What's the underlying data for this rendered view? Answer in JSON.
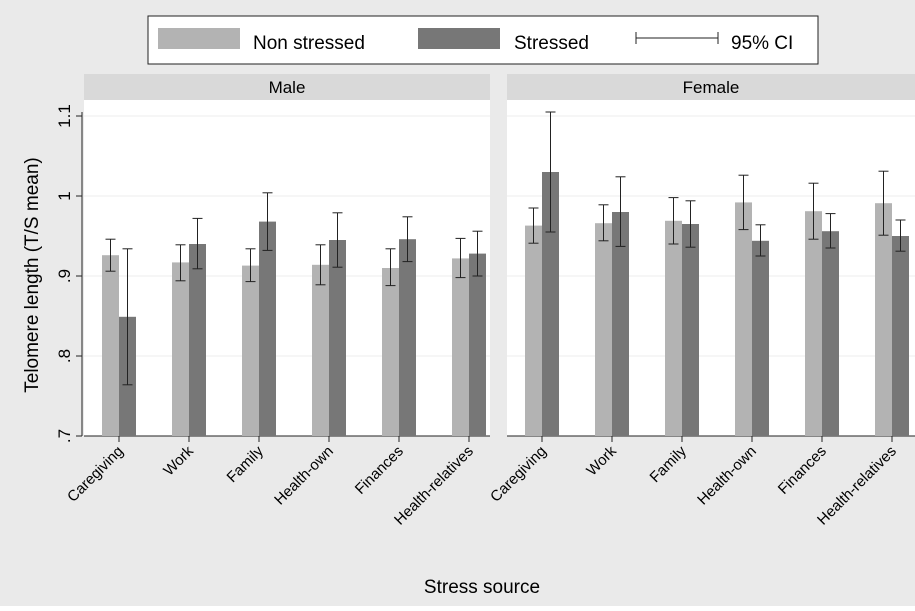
{
  "chart_data": {
    "type": "bar",
    "ylabel": "Telomere length (T/S mean)",
    "xlabel": "Stress source",
    "ylim": [
      0.7,
      1.12
    ],
    "yticks": [
      0.7,
      0.8,
      0.9,
      1.0,
      1.1
    ],
    "ytick_labels": [
      ".7",
      ".8",
      ".9",
      "1",
      "1.1"
    ],
    "grid": true,
    "legend_position": "top",
    "legend": {
      "series_labels": [
        "Non stressed",
        "Stressed"
      ],
      "ci_label": "95% CI"
    },
    "colors": {
      "non_stressed": "#b3b3b3",
      "stressed": "#777777",
      "panel_header": "#d9d9d9",
      "plot_background": "#eaeaea",
      "panel_background": "#ffffff"
    },
    "categories": [
      "Caregiving",
      "Work",
      "Family",
      "Health-own",
      "Finances",
      "Health-relatives"
    ],
    "panels": [
      {
        "title": "Male",
        "series": [
          {
            "name": "Non stressed",
            "values": [
              0.926,
              0.917,
              0.913,
              0.914,
              0.91,
              0.922
            ],
            "ci_low": [
              0.906,
              0.894,
              0.893,
              0.889,
              0.888,
              0.898
            ],
            "ci_high": [
              0.946,
              0.939,
              0.934,
              0.939,
              0.934,
              0.947
            ]
          },
          {
            "name": "Stressed",
            "values": [
              0.849,
              0.94,
              0.968,
              0.945,
              0.946,
              0.928
            ],
            "ci_low": [
              0.764,
              0.909,
              0.932,
              0.911,
              0.918,
              0.9
            ],
            "ci_high": [
              0.934,
              0.972,
              1.004,
              0.979,
              0.974,
              0.956
            ]
          }
        ]
      },
      {
        "title": "Female",
        "series": [
          {
            "name": "Non stressed",
            "values": [
              0.963,
              0.966,
              0.969,
              0.992,
              0.981,
              0.991
            ],
            "ci_low": [
              0.941,
              0.944,
              0.94,
              0.958,
              0.946,
              0.951
            ],
            "ci_high": [
              0.985,
              0.989,
              0.998,
              1.026,
              1.016,
              1.031
            ]
          },
          {
            "name": "Stressed",
            "values": [
              1.03,
              0.98,
              0.965,
              0.944,
              0.956,
              0.95
            ],
            "ci_low": [
              0.955,
              0.937,
              0.936,
              0.925,
              0.935,
              0.931
            ],
            "ci_high": [
              1.105,
              1.024,
              0.994,
              0.964,
              0.978,
              0.97
            ]
          }
        ]
      }
    ]
  }
}
